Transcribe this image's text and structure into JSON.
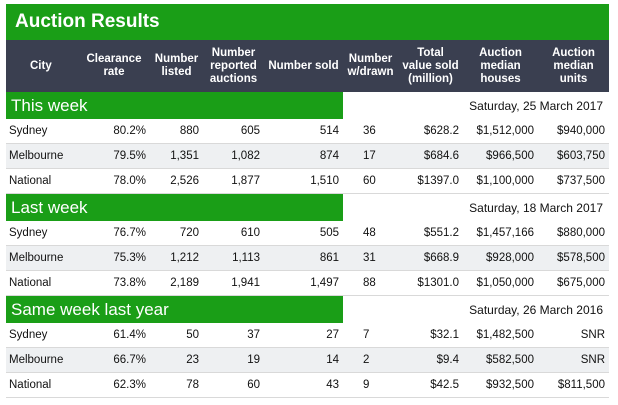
{
  "title": "Auction Results",
  "headers": {
    "city": "City",
    "clearance": "Clearance rate",
    "listed": "Number listed",
    "reported": "Number reported auctions",
    "sold": "Number sold",
    "withdrawn": "Number w/drawn",
    "value": "Total value sold (million)",
    "houses": "Auction median houses",
    "units": "Auction median units"
  },
  "sections": [
    {
      "label": "This week",
      "date": "Saturday, 25 March 2017",
      "rows": [
        {
          "city": "Sydney",
          "clearance": "80.2%",
          "listed": "880",
          "reported": "605",
          "sold": "514",
          "withdrawn": "36",
          "value": "$628.2",
          "houses": "$1,512,000",
          "units": "$940,000"
        },
        {
          "city": "Melbourne",
          "clearance": "79.5%",
          "listed": "1,351",
          "reported": "1,082",
          "sold": "874",
          "withdrawn": "17",
          "value": "$684.6",
          "houses": "$966,500",
          "units": "$603,750"
        },
        {
          "city": "National",
          "clearance": "78.0%",
          "listed": "2,526",
          "reported": "1,877",
          "sold": "1,510",
          "withdrawn": "60",
          "value": "$1397.0",
          "houses": "$1,100,000",
          "units": "$737,500"
        }
      ]
    },
    {
      "label": "Last week",
      "date": "Saturday, 18 March 2017",
      "rows": [
        {
          "city": "Sydney",
          "clearance": "76.7%",
          "listed": "720",
          "reported": "610",
          "sold": "505",
          "withdrawn": "48",
          "value": "$551.2",
          "houses": "$1,457,166",
          "units": "$880,000"
        },
        {
          "city": "Melbourne",
          "clearance": "75.3%",
          "listed": "1,212",
          "reported": "1,113",
          "sold": "861",
          "withdrawn": "31",
          "value": "$668.9",
          "houses": "$928,000",
          "units": "$578,500"
        },
        {
          "city": "National",
          "clearance": "73.8%",
          "listed": "2,189",
          "reported": "1,941",
          "sold": "1,497",
          "withdrawn": "88",
          "value": "$1301.0",
          "houses": "$1,050,000",
          "units": "$675,000"
        }
      ]
    },
    {
      "label": "Same week last year",
      "date": "Saturday, 26 March 2016",
      "rows": [
        {
          "city": "Sydney",
          "clearance": "61.4%",
          "listed": "50",
          "reported": "37",
          "sold": "27",
          "withdrawn": "7",
          "value": "$32.1",
          "houses": "$1,482,500",
          "units": "SNR"
        },
        {
          "city": "Melbourne",
          "clearance": "66.7%",
          "listed": "23",
          "reported": "19",
          "sold": "14",
          "withdrawn": "2",
          "value": "$9.4",
          "houses": "$582,500",
          "units": "SNR"
        },
        {
          "city": "National",
          "clearance": "62.3%",
          "listed": "78",
          "reported": "60",
          "sold": "43",
          "withdrawn": "9",
          "value": "$42.5",
          "houses": "$932,500",
          "units": "$811,500"
        }
      ]
    }
  ]
}
